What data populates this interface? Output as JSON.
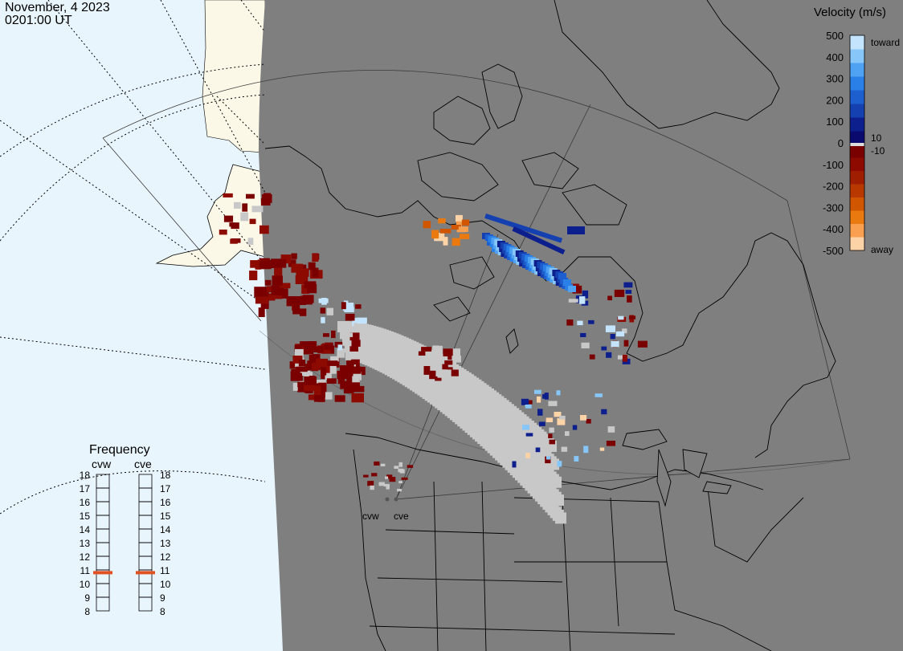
{
  "header": {
    "date": "November, 4 2023",
    "time": "0201:00 UT"
  },
  "colors": {
    "ocean": "#e9f5fd",
    "land_outside": "#fbf8e8",
    "night_land": "#7f7f7f",
    "coast": "#000000",
    "grid": "#000000",
    "ground_scatter": "#c8c8c8"
  },
  "colorbar": {
    "title": "Velocity (m/s)",
    "ticks": [
      "500",
      "400",
      "300",
      "200",
      "100",
      "0",
      "-100",
      "-200",
      "-300",
      "-400",
      "-500"
    ],
    "label_10": "10",
    "label_neg10": "-10",
    "toward_label": "toward",
    "away_label": "away",
    "colors_positive": [
      "#0a0a6e",
      "#0d1f8c",
      "#1540b0",
      "#1e5fcf",
      "#2a80e6",
      "#4fa2f2",
      "#86c6f8",
      "#c3e4fc"
    ],
    "colors_negative": [
      "#7a0000",
      "#8c0a00",
      "#a01e00",
      "#b83800",
      "#d05600",
      "#ea7a10",
      "#f8a050",
      "#fcd3a6"
    ]
  },
  "radars": {
    "names": [
      "cvw",
      "cve"
    ],
    "site_labels": [
      "cvw",
      "cve"
    ]
  },
  "frequency": {
    "title": "Frequency",
    "columns": [
      "cvw",
      "cve"
    ],
    "scale": [
      "18",
      "17",
      "16",
      "15",
      "14",
      "13",
      "12",
      "11",
      "10",
      "9",
      "8"
    ],
    "values_mhz": [
      10.8,
      10.8
    ],
    "marker_color": "#e05020"
  }
}
